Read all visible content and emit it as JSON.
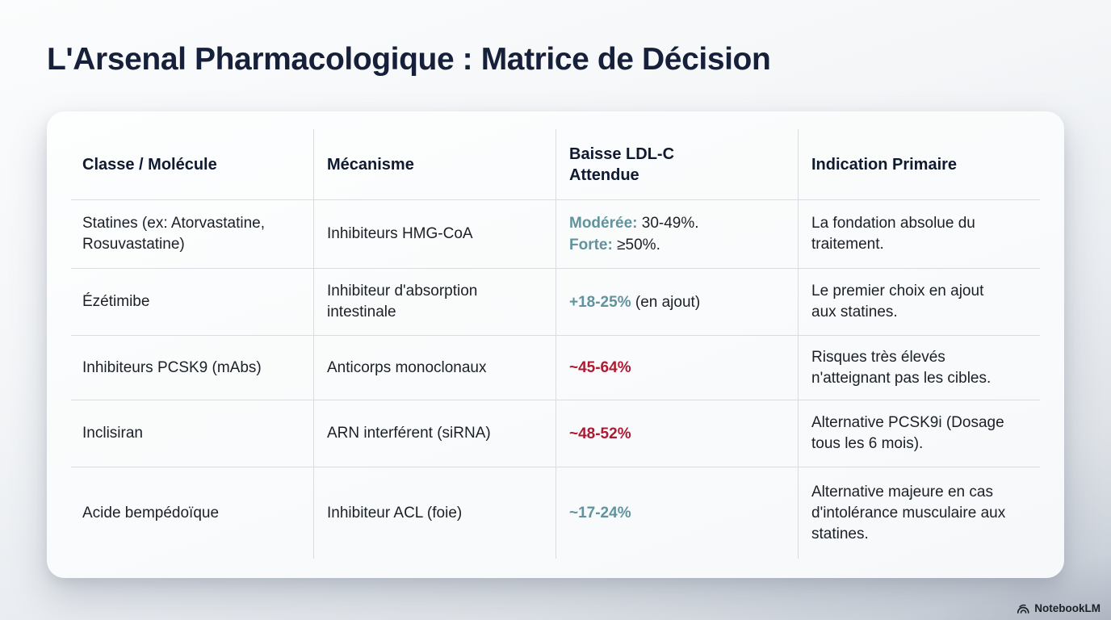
{
  "title": "L'Arsenal Pharmacologique : Matrice de Décision",
  "watermark": {
    "brand": "NotebookLM"
  },
  "colors": {
    "teal": "#60939d",
    "red": "#ac1b32",
    "title_navy": "#16203a",
    "divider": "#d9dce1"
  },
  "table": {
    "headers": [
      {
        "label": "Classe / Molécule"
      },
      {
        "label": "Mécanisme"
      },
      {
        "label": "Baisse LDL-C\nAttendue"
      },
      {
        "label": "Indication Primaire"
      }
    ],
    "rows": [
      {
        "classe": "Statines (ex: Atorvastatine, Rosuvastatine)",
        "mecanisme": "Inhibiteurs HMG-CoA",
        "baisse": [
          [
            {
              "text": "Modérée:",
              "color": "teal"
            },
            {
              "text": " 30-49%."
            }
          ],
          [
            {
              "text": "Forte:",
              "color": "teal"
            },
            {
              "text": " ≥50%."
            }
          ]
        ],
        "indication": "La fondation absolue du traitement."
      },
      {
        "classe": "Ézétimibe",
        "mecanisme": "Inhibiteur d'absorption intestinale",
        "baisse": [
          [
            {
              "text": "+18-25%",
              "color": "teal"
            },
            {
              "text": " (en ajout)"
            }
          ]
        ],
        "indication": "Le premier choix en ajout aux statines."
      },
      {
        "classe": "Inhibiteurs PCSK9 (mAbs)",
        "mecanisme": "Anticorps monoclonaux",
        "baisse": [
          [
            {
              "text": "~45-64%",
              "color": "red"
            }
          ]
        ],
        "indication": "Risques très élevés n'atteignant pas les cibles."
      },
      {
        "classe": "Inclisiran",
        "mecanisme": "ARN interférent (siRNA)",
        "baisse": [
          [
            {
              "text": "~48-52%",
              "color": "red"
            }
          ]
        ],
        "indication": "Alternative PCSK9i (Dosage tous les 6 mois)."
      },
      {
        "classe": "Acide bempédoïque",
        "mecanisme": "Inhibiteur ACL (foie)",
        "baisse": [
          [
            {
              "text": "~17-24%",
              "color": "teal"
            }
          ]
        ],
        "indication": "Alternative majeure en cas d'intolérance musculaire aux statines."
      }
    ]
  }
}
